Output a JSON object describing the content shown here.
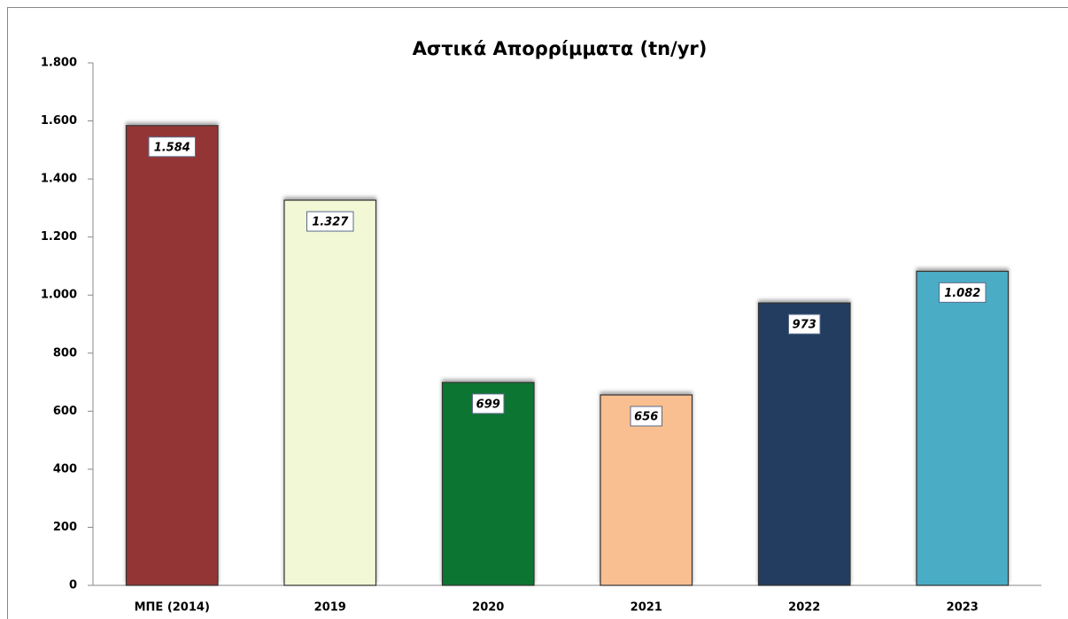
{
  "chart_data": {
    "type": "bar",
    "title": "Αστικά Απορρίμματα (tn/yr)",
    "categories": [
      "ΜΠΕ (2014)",
      "2019",
      "2020",
      "2021",
      "2022",
      "2023"
    ],
    "values": [
      1584,
      1327,
      699,
      656,
      973,
      1082
    ],
    "value_labels": [
      "1.584",
      "1.327",
      "699",
      "656",
      "973",
      "1.082"
    ],
    "colors": [
      "#943634",
      "#f2f8d6",
      "#117530",
      "#f9bf90",
      "#243e5e",
      "#4bacc6"
    ],
    "ylim": [
      0,
      1800
    ],
    "yticks": [
      0,
      200,
      400,
      600,
      800,
      {
        "value": 1000,
        "label": "1.000"
      },
      {
        "value": 1200,
        "label": "1.200"
      },
      {
        "value": 1400,
        "label": "1.400"
      },
      {
        "value": 1600,
        "label": "1.600"
      },
      {
        "value": 1800,
        "label": "1.800"
      }
    ]
  }
}
